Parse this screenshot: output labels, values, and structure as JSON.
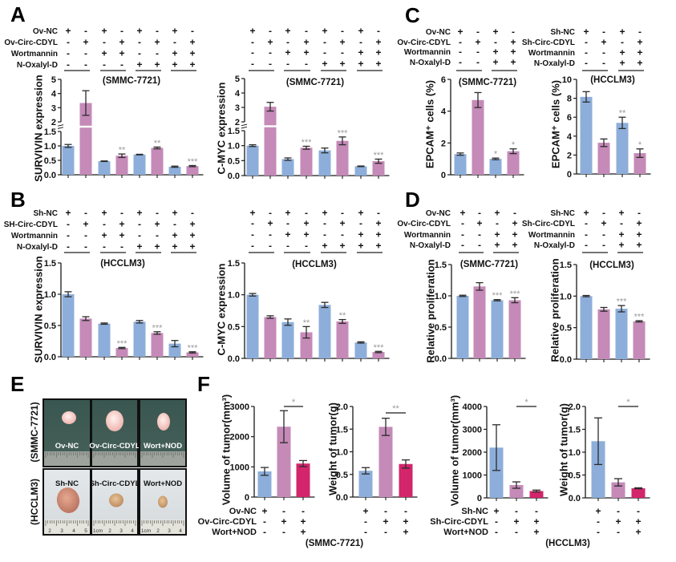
{
  "figure": {
    "panel_labels": {
      "A": "A",
      "B": "B",
      "C": "C",
      "D": "D",
      "E": "E",
      "F": "F"
    },
    "colors": {
      "blue": "#8DAEDA",
      "pink": "#C58AB8",
      "magenta": "#D3256B",
      "error_bar": "#2b2b2b",
      "significance": "#9a9a9a",
      "axis": "#1a1a1a"
    }
  },
  "panel_E": {
    "row_labels": [
      "(SMMC-7721)",
      "(HCCLM3)"
    ],
    "photos": [
      [
        {
          "label": "Ov-NC"
        },
        {
          "label": "Ov-Circ-CDYL"
        },
        {
          "label": "Wort+NOD"
        }
      ],
      [
        {
          "label": "Sh-NC",
          "ruler": [
            "2",
            "3",
            "4",
            "5"
          ]
        },
        {
          "label": "Sh-Circ-CDYL",
          "ruler": [
            "1cm",
            "2",
            "3",
            "4"
          ]
        },
        {
          "label": "Wort+NOD",
          "ruler": [
            "1cm",
            "2",
            "3",
            "4"
          ]
        }
      ]
    ]
  },
  "chart_data": [
    {
      "id": "A-survivin-smmc7721",
      "panel": "A",
      "type": "bar",
      "title": "(SMMC-7721)",
      "cell_line": "SMMC-7721",
      "ylabel": "SURVIVIN expression",
      "xlabel": "",
      "ylim": [
        0,
        5
      ],
      "axis_break": [
        1.5,
        2
      ],
      "yticks": [
        0,
        0.5,
        1,
        1.5,
        2,
        3,
        4,
        5
      ],
      "ytick_labels": [
        "0.0",
        "0.5",
        "1.0",
        "1.5",
        "2",
        "3",
        "4",
        "5"
      ],
      "conditions": {
        "row_labels": [
          "Ov-NC",
          "Ov-Circ-CDYL",
          "Wortmannin",
          "N-Oxalyl-D"
        ],
        "rows": [
          [
            "+",
            "-",
            "+",
            "-",
            "+",
            "-",
            "+",
            "-"
          ],
          [
            "-",
            "+",
            "-",
            "+",
            "-",
            "+",
            "-",
            "+"
          ],
          [
            "-",
            "-",
            "+",
            "+",
            "-",
            "-",
            "+",
            "+"
          ],
          [
            "-",
            "-",
            "-",
            "-",
            "+",
            "+",
            "+",
            "+"
          ]
        ],
        "groups": [
          [
            0,
            1
          ],
          [
            2,
            3
          ],
          [
            4,
            5
          ],
          [
            6,
            7
          ]
        ]
      },
      "values": [
        1.0,
        3.33,
        0.47,
        0.66,
        0.7,
        0.93,
        0.28,
        0.3
      ],
      "errors": [
        0.05,
        0.87,
        0.01,
        0.06,
        0.01,
        0.03,
        0.02,
        0.02
      ],
      "colors": [
        "blue",
        "pink",
        "blue",
        "pink",
        "blue",
        "pink",
        "blue",
        "pink"
      ],
      "significance": [
        "",
        "",
        "",
        "**",
        "",
        "**",
        "",
        "***"
      ]
    },
    {
      "id": "A-cmyc-smmc7721",
      "panel": "A",
      "type": "bar",
      "title": "(SMMC-7721)",
      "cell_line": "SMMC-7721",
      "ylabel": "C-MYC expression",
      "xlabel": "",
      "ylim": [
        0,
        5
      ],
      "axis_break": [
        1.5,
        2
      ],
      "yticks": [
        0,
        0.5,
        1,
        1.5,
        2,
        3,
        4,
        5
      ],
      "ytick_labels": [
        "0.0",
        "0.5",
        "1.0",
        "1.5",
        "2",
        "3",
        "4",
        "5"
      ],
      "conditions": {
        "row_labels": [],
        "rows": [
          [
            "+",
            "-",
            "+",
            "-",
            "+",
            "-",
            "+",
            "-"
          ],
          [
            "-",
            "+",
            "-",
            "+",
            "-",
            "+",
            "-",
            "+"
          ],
          [
            "-",
            "-",
            "+",
            "+",
            "-",
            "-",
            "+",
            "+"
          ],
          [
            "-",
            "-",
            "-",
            "-",
            "+",
            "+",
            "+",
            "+"
          ]
        ],
        "groups": [
          [
            0,
            1
          ],
          [
            2,
            3
          ],
          [
            4,
            5
          ],
          [
            6,
            7
          ]
        ]
      },
      "values": [
        1.0,
        3.05,
        0.55,
        0.93,
        0.84,
        1.16,
        0.31,
        0.48
      ],
      "errors": [
        0.03,
        0.3,
        0.04,
        0.05,
        0.08,
        0.13,
        0.01,
        0.07
      ],
      "colors": [
        "blue",
        "pink",
        "blue",
        "pink",
        "blue",
        "pink",
        "blue",
        "pink"
      ],
      "significance": [
        "",
        "",
        "",
        "***",
        "",
        "***",
        "",
        "***"
      ]
    },
    {
      "id": "B-survivin-hcclm3",
      "panel": "B",
      "type": "bar",
      "title": "(HCCLM3)",
      "cell_line": "HCCLM3",
      "ylabel": "SURVIVIN expression",
      "xlabel": "",
      "ylim": [
        0,
        1.5
      ],
      "yticks": [
        0,
        0.5,
        1,
        1.5
      ],
      "ytick_labels": [
        "0.0",
        "0.5",
        "1.0",
        "1.5"
      ],
      "conditions": {
        "row_labels": [
          "Sh-NC",
          "SH-Circ-CDYL",
          "Wortmannin",
          "N-Oxalyl-D"
        ],
        "rows": [
          [
            "+",
            "-",
            "+",
            "-",
            "+",
            "-",
            "+",
            "-"
          ],
          [
            "-",
            "+",
            "-",
            "+",
            "-",
            "+",
            "-",
            "+"
          ],
          [
            "-",
            "-",
            "+",
            "+",
            "-",
            "-",
            "+",
            "+"
          ],
          [
            "-",
            "-",
            "-",
            "-",
            "+",
            "+",
            "+",
            "+"
          ]
        ],
        "groups": [
          [
            0,
            1
          ],
          [
            2,
            3
          ],
          [
            4,
            5
          ],
          [
            6,
            7
          ]
        ]
      },
      "values": [
        1.0,
        0.61,
        0.53,
        0.14,
        0.56,
        0.38,
        0.21,
        0.07
      ],
      "errors": [
        0.04,
        0.03,
        0.01,
        0.01,
        0.02,
        0.02,
        0.05,
        0.01
      ],
      "colors": [
        "blue",
        "pink",
        "blue",
        "pink",
        "blue",
        "pink",
        "blue",
        "pink"
      ],
      "significance": [
        "",
        "",
        "",
        "***",
        "",
        "***",
        "",
        "***"
      ]
    },
    {
      "id": "B-cmyc-hcclm3",
      "panel": "B",
      "type": "bar",
      "title": "(HCCLM3)",
      "cell_line": "HCCLM3",
      "ylabel": "C-MYC expression",
      "xlabel": "",
      "ylim": [
        0,
        1.5
      ],
      "yticks": [
        0,
        0.5,
        1,
        1.5
      ],
      "ytick_labels": [
        "0.0",
        "0.5",
        "1.0",
        "1.5"
      ],
      "conditions": {
        "row_labels": [],
        "rows": [
          [
            "+",
            "-",
            "+",
            "-",
            "+",
            "-",
            "+",
            "-"
          ],
          [
            "-",
            "+",
            "-",
            "+",
            "-",
            "+",
            "-",
            "+"
          ],
          [
            "-",
            "-",
            "+",
            "+",
            "-",
            "-",
            "+",
            "+"
          ],
          [
            "-",
            "-",
            "-",
            "-",
            "+",
            "+",
            "+",
            "+"
          ]
        ],
        "groups": [
          [
            0,
            1
          ],
          [
            2,
            3
          ],
          [
            4,
            5
          ],
          [
            6,
            7
          ]
        ]
      },
      "values": [
        1.0,
        0.65,
        0.57,
        0.41,
        0.84,
        0.58,
        0.25,
        0.1
      ],
      "errors": [
        0.02,
        0.02,
        0.05,
        0.09,
        0.04,
        0.03,
        0.01,
        0.01
      ],
      "colors": [
        "blue",
        "pink",
        "blue",
        "pink",
        "blue",
        "pink",
        "blue",
        "pink"
      ],
      "significance": [
        "",
        "",
        "",
        "**",
        "",
        "**",
        "",
        "***"
      ]
    },
    {
      "id": "C-epcam-smmc7721",
      "panel": "C",
      "type": "bar",
      "title": "(SMMC-7721)",
      "cell_line": "SMMC-7721",
      "ylabel": "EPCAM⁺ cells (%)",
      "xlabel": "",
      "ylim": [
        0,
        6
      ],
      "yticks": [
        0,
        2,
        4,
        6
      ],
      "ytick_labels": [
        "0",
        "2",
        "4",
        "6"
      ],
      "conditions": {
        "row_labels": [
          "Ov-NC",
          "Ov-Circ-CDYL",
          "Wortmannin",
          "N-Oxalyl-D"
        ],
        "rows": [
          [
            "+",
            "-",
            "+",
            "-"
          ],
          [
            "-",
            "+",
            "-",
            "+"
          ],
          [
            "-",
            "-",
            "+",
            "+"
          ],
          [
            "-",
            "-",
            "+",
            "+"
          ]
        ],
        "groups": [
          [
            0,
            1
          ],
          [
            2,
            3
          ]
        ]
      },
      "values": [
        1.3,
        4.7,
        1.0,
        1.48
      ],
      "errors": [
        0.07,
        0.47,
        0.05,
        0.15
      ],
      "colors": [
        "blue",
        "pink",
        "blue",
        "pink"
      ],
      "significance": [
        "",
        "",
        "*",
        "*"
      ]
    },
    {
      "id": "C-epcam-hcclm3",
      "panel": "C",
      "type": "bar",
      "title": "(HCCLM3)",
      "cell_line": "HCCLM3",
      "ylabel": "EPCAM⁺ cells (%)",
      "xlabel": "",
      "ylim": [
        0,
        10
      ],
      "yticks": [
        0,
        2,
        4,
        6,
        8,
        10
      ],
      "ytick_labels": [
        "0",
        "2",
        "4",
        "6",
        "8",
        "10"
      ],
      "conditions": {
        "row_labels": [
          "Sh-NC",
          "Sh-Circ-CDYL",
          "Wortmannin",
          "N-Oxalyl-D"
        ],
        "rows": [
          [
            "+",
            "-",
            "+",
            "-"
          ],
          [
            "-",
            "+",
            "-",
            "+"
          ],
          [
            "-",
            "-",
            "+",
            "+"
          ],
          [
            "-",
            "-",
            "+",
            "+"
          ]
        ],
        "groups": [
          [
            0,
            1
          ],
          [
            2,
            3
          ]
        ]
      },
      "values": [
        8.15,
        3.3,
        5.4,
        2.2
      ],
      "errors": [
        0.55,
        0.4,
        0.6,
        0.45
      ],
      "colors": [
        "blue",
        "pink",
        "blue",
        "pink"
      ],
      "significance": [
        "",
        "",
        "**",
        "*"
      ]
    },
    {
      "id": "D-proliferation-smmc7721",
      "panel": "D",
      "type": "bar",
      "title": "(SMMC-7721)",
      "cell_line": "SMMC-7721",
      "ylabel": "Relative proliferation",
      "xlabel": "",
      "ylim": [
        0,
        1.5
      ],
      "yticks": [
        0,
        0.5,
        1,
        1.5
      ],
      "ytick_labels": [
        "0.0",
        "0.5",
        "1.0",
        "1.5"
      ],
      "conditions": {
        "row_labels": [
          "Ov-NC",
          "Ov-Circ-CDYL",
          "Wortmannin",
          "N-Oxalyl-D"
        ],
        "rows": [
          [
            "+",
            "-",
            "+",
            "-"
          ],
          [
            "-",
            "+",
            "-",
            "+"
          ],
          [
            "-",
            "-",
            "+",
            "+"
          ],
          [
            "-",
            "-",
            "+",
            "+"
          ]
        ],
        "groups": [
          [
            0,
            1
          ],
          [
            2,
            3
          ]
        ]
      },
      "values": [
        1.0,
        1.15,
        0.93,
        0.93
      ],
      "errors": [
        0.01,
        0.06,
        0.01,
        0.04
      ],
      "colors": [
        "blue",
        "pink",
        "blue",
        "pink"
      ],
      "significance": [
        "",
        "",
        "***",
        "***"
      ]
    },
    {
      "id": "D-proliferation-hcclm3",
      "panel": "D",
      "type": "bar",
      "title": "(HCCLM3)",
      "cell_line": "HCCLM3",
      "ylabel": "Relative proliferation",
      "xlabel": "",
      "ylim": [
        0,
        1.5
      ],
      "yticks": [
        0,
        0.5,
        1,
        1.5
      ],
      "ytick_labels": [
        "0.0",
        "0.5",
        "1.0",
        "1.5"
      ],
      "conditions": {
        "row_labels": [
          "Sh-NC",
          "Sh-Circ-CDYL",
          "Wortmannin",
          "N-Oxalyl-D"
        ],
        "rows": [
          [
            "+",
            "-",
            "+",
            "-"
          ],
          [
            "-",
            "+",
            "-",
            "+"
          ],
          [
            "-",
            "-",
            "+",
            "+"
          ],
          [
            "-",
            "-",
            "+",
            "+"
          ]
        ],
        "groups": [
          [
            0,
            1
          ],
          [
            2,
            3
          ]
        ]
      },
      "values": [
        1.0,
        0.79,
        0.8,
        0.6
      ],
      "errors": [
        0.01,
        0.03,
        0.05,
        0.01
      ],
      "colors": [
        "blue",
        "pink",
        "blue",
        "pink"
      ],
      "significance": [
        "",
        "",
        "***",
        "***"
      ]
    },
    {
      "id": "F-volume-smmc7721",
      "panel": "F",
      "type": "bar",
      "title": null,
      "cell_line": "SMMC-7721",
      "ylabel": "Volume of tumor(mm³)",
      "xlabel": "",
      "ylim": [
        0,
        3000
      ],
      "yticks": [
        0,
        1000,
        2000,
        3000
      ],
      "ytick_labels": [
        "0",
        "1000",
        "2000",
        "3000"
      ],
      "conditions": {
        "row_labels": [
          "Ov-NC",
          "Ov-Circ-CDYL",
          "Wort+NOD"
        ],
        "rows": [
          [
            "+",
            "-",
            "-"
          ],
          [
            "-",
            "+",
            "+"
          ],
          [
            "-",
            "-",
            "+"
          ]
        ],
        "groups": []
      },
      "values": [
        850,
        2330,
        1110
      ],
      "errors": [
        130,
        530,
        100
      ],
      "colors": [
        "blue",
        "pink",
        "magenta"
      ],
      "significance": [
        "",
        "",
        ""
      ],
      "sig_bracket": {
        "from": 1,
        "to": 2,
        "label": "*"
      }
    },
    {
      "id": "F-weight-smmc7721",
      "panel": "F",
      "type": "bar",
      "title": "(SMMC-7721)",
      "cell_line": "SMMC-7721",
      "ylabel": "Weight of tumor(g)",
      "xlabel": "",
      "ylim": [
        0,
        2
      ],
      "yticks": [
        0,
        0.5,
        1,
        1.5,
        2
      ],
      "ytick_labels": [
        "0.0",
        "0.5",
        "1.0",
        "1.5",
        "2.0"
      ],
      "conditions": {
        "row_labels": [],
        "rows": [
          [
            "+",
            "-",
            "-"
          ],
          [
            "-",
            "+",
            "+"
          ],
          [
            "-",
            "-",
            "+"
          ]
        ],
        "groups": []
      },
      "values": [
        0.58,
        1.55,
        0.73
      ],
      "errors": [
        0.07,
        0.19,
        0.09
      ],
      "colors": [
        "blue",
        "pink",
        "magenta"
      ],
      "significance": [
        "",
        "",
        ""
      ],
      "sig_bracket": {
        "from": 1,
        "to": 2,
        "label": "**"
      }
    },
    {
      "id": "F-volume-hcclm3",
      "panel": "F",
      "type": "bar",
      "title": null,
      "cell_line": "HCCLM3",
      "ylabel": "Volume of tumor(mm³)",
      "xlabel": "",
      "ylim": [
        0,
        4000
      ],
      "yticks": [
        0,
        1000,
        2000,
        3000,
        4000
      ],
      "ytick_labels": [
        "0",
        "1000",
        "2000",
        "3000",
        "4000"
      ],
      "conditions": {
        "row_labels": [
          "Sh-NC",
          "Sh-Circ-CDYL",
          "Wort+NOD"
        ],
        "rows": [
          [
            "+",
            "-",
            "-"
          ],
          [
            "-",
            "+",
            "+"
          ],
          [
            "-",
            "-",
            "+"
          ]
        ],
        "groups": []
      },
      "values": [
        2200,
        560,
        300
      ],
      "errors": [
        1000,
        140,
        40
      ],
      "colors": [
        "blue",
        "pink",
        "magenta"
      ],
      "significance": [
        "",
        "",
        ""
      ],
      "sig_bracket": {
        "from": 1,
        "to": 2,
        "label": "*"
      }
    },
    {
      "id": "F-weight-hcclm3",
      "panel": "F",
      "type": "bar",
      "title": "(HCCLM3)",
      "cell_line": "HCCLM3",
      "ylabel": "Weight of tumor(g)",
      "xlabel": "",
      "ylim": [
        0,
        2
      ],
      "yticks": [
        0,
        0.5,
        1,
        1.5,
        2
      ],
      "ytick_labels": [
        "0.0",
        "0.5",
        "1.0",
        "1.5",
        "2.0"
      ],
      "conditions": {
        "row_labels": [],
        "rows": [
          [
            "+",
            "-",
            "-"
          ],
          [
            "-",
            "+",
            "+"
          ],
          [
            "-",
            "-",
            "+"
          ]
        ],
        "groups": []
      },
      "values": [
        1.24,
        0.34,
        0.21
      ],
      "errors": [
        0.51,
        0.08,
        0.01
      ],
      "colors": [
        "blue",
        "pink",
        "magenta"
      ],
      "significance": [
        "",
        "",
        ""
      ],
      "sig_bracket": {
        "from": 1,
        "to": 2,
        "label": "*"
      }
    }
  ]
}
